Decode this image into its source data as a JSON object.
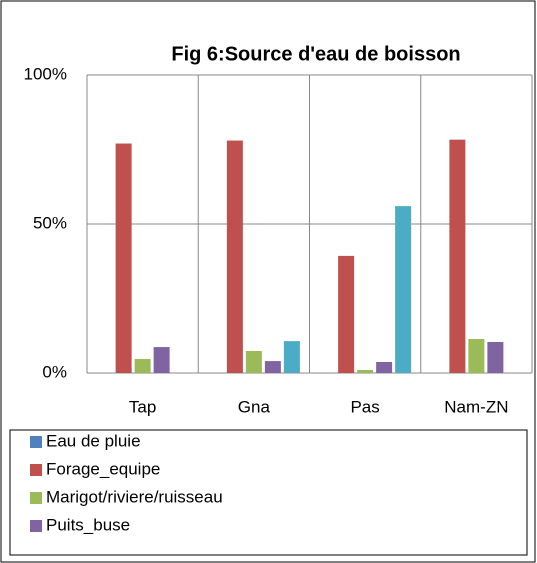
{
  "chart_data": {
    "type": "bar",
    "title": "Fig 6:Source d'eau de boisson",
    "categories": [
      "Tap",
      "Gna",
      "Pas",
      "Nam-ZN"
    ],
    "series": [
      {
        "name": "Eau de pluie",
        "color": "#4f81bd",
        "values": [
          0,
          0,
          0,
          0
        ]
      },
      {
        "name": "Forage_equipe",
        "color": "#c0504d",
        "values": [
          77,
          78,
          39.3,
          78.3
        ]
      },
      {
        "name": "Marigot/riviere/ruisseau",
        "color": "#9bbb59",
        "values": [
          4.7,
          7.4,
          1,
          11.4
        ]
      },
      {
        "name": "Puits_buse",
        "color": "#8064a2",
        "values": [
          8.7,
          4,
          3.7,
          10.4
        ]
      },
      {
        "color": "#4bacc6",
        "values": [
          0,
          10.7,
          56,
          0
        ]
      }
    ],
    "ylim": [
      0,
      100
    ],
    "yticks": [
      {
        "value": 0,
        "label": "0%"
      },
      {
        "value": 50,
        "label": "50%"
      },
      {
        "value": 100,
        "label": "100%"
      }
    ],
    "grid": true
  }
}
